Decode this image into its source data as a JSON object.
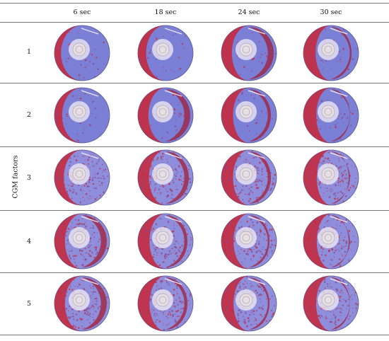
{
  "table": {
    "row_header_label": "CGM  factors",
    "columns": [
      "6 sec",
      "18 sec",
      "24 sec",
      "30 sec"
    ],
    "rows": [
      {
        "label": "1",
        "stain_level": [
          0.2,
          0.35,
          0.55,
          0.7
        ]
      },
      {
        "label": "2",
        "stain_level": [
          0.3,
          0.55,
          0.65,
          0.75
        ]
      },
      {
        "label": "3",
        "stain_level": [
          0.45,
          0.6,
          0.65,
          0.8
        ]
      },
      {
        "label": "4",
        "stain_level": [
          0.55,
          0.65,
          0.7,
          0.8
        ]
      },
      {
        "label": "5",
        "stain_level": [
          0.55,
          0.65,
          0.7,
          0.75
        ]
      }
    ]
  },
  "colors": {
    "dish_blue": "#8e8edc",
    "dish_blue_dense": "#7b7fd6",
    "stain_red": "#c42a3e",
    "stain_dark_red": "#a01e35",
    "speckle_purple": "#8a4a8c",
    "center_pad": "#e6dfe4",
    "rule": "#777777"
  }
}
